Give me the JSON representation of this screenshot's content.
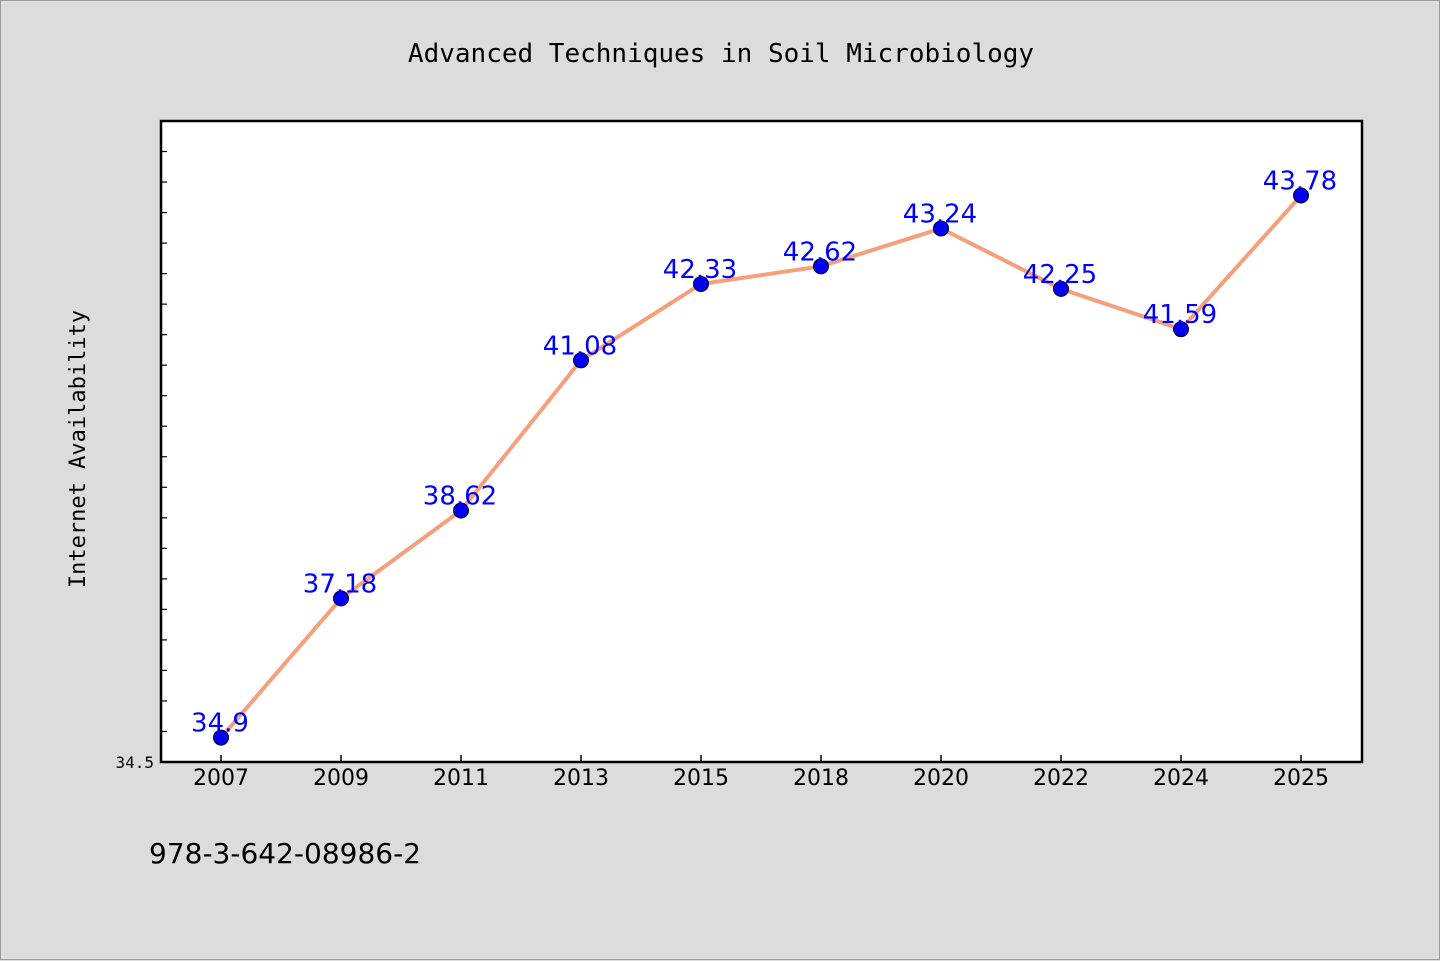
{
  "footer_text": "978-3-642-08986-2",
  "colors": {
    "background": "#dcdcdc",
    "plot_background": "#ffffff",
    "line": "#f4a07c",
    "marker": "#0000ee",
    "data_label": "#0000ff",
    "axis": "#000000"
  },
  "chart_data": {
    "type": "line",
    "title": "Advanced Techniques in Soil Microbiology",
    "xlabel": "",
    "ylabel": "Internet Availability",
    "categories": [
      "2007",
      "2009",
      "2011",
      "2013",
      "2015",
      "2018",
      "2020",
      "2022",
      "2024",
      "2025"
    ],
    "series": [
      {
        "values": [
          34.9,
          37.18,
          38.62,
          41.08,
          42.33,
          42.62,
          43.24,
          42.25,
          41.59,
          43.78
        ]
      }
    ],
    "data_labels": [
      "34.9",
      "37.18",
      "38.62",
      "41.08",
      "42.33",
      "42.62",
      "43.24",
      "42.25",
      "41.59",
      "43.78"
    ],
    "y_tick_labels": [
      "34.5"
    ],
    "ylim": [
      34.5,
      45.0
    ],
    "grid": false,
    "legend": "none"
  }
}
